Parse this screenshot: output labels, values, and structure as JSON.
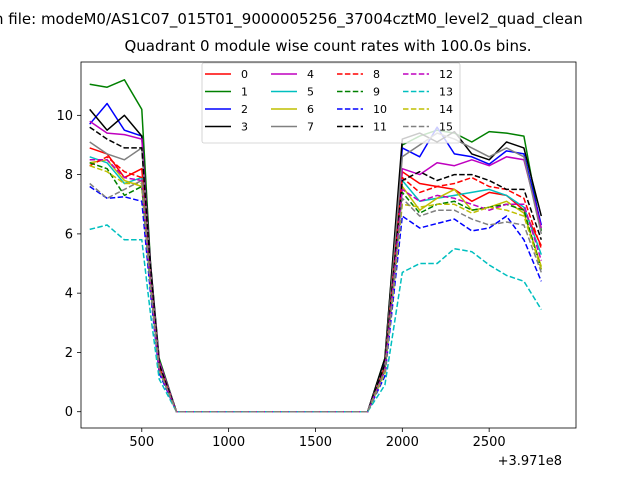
{
  "suptitle": "n file: modeM0/AS1C07_015T01_9000005256_37004cztM0_level2_quad_clean",
  "chart_data": {
    "type": "line",
    "title": "Quadrant 0 module wise count rates with 100.0s bins.",
    "xlabel": "",
    "ylabel": "",
    "x_offset_label": "+3.971e8",
    "xlim": [
      150,
      3000
    ],
    "ylim": [
      -0.55,
      11.8
    ],
    "xticks": [
      500,
      1000,
      1500,
      2000,
      2500
    ],
    "xtick_labels": [
      "500",
      "1000",
      "1500",
      "2000",
      "2500"
    ],
    "yticks": [
      0,
      2,
      4,
      6,
      8,
      10
    ],
    "ytick_labels": [
      "0",
      "2",
      "4",
      "6",
      "8",
      "10"
    ],
    "grid": false,
    "legend_position": "upper-center",
    "legend_columns": 4,
    "x": [
      200,
      300,
      400,
      500,
      550,
      600,
      700,
      800,
      900,
      1000,
      1100,
      1200,
      1300,
      1400,
      1500,
      1600,
      1700,
      1800,
      1900,
      2000,
      2100,
      2200,
      2300,
      2400,
      2500,
      2600,
      2700,
      2800
    ],
    "series": [
      {
        "name": "0",
        "color": "#ff0000",
        "dash": "solid",
        "values": [
          8.9,
          8.7,
          7.9,
          8.2,
          4.5,
          1.5,
          0,
          0,
          0,
          0,
          0,
          0,
          0,
          0,
          0,
          0,
          0,
          0,
          1.4,
          8.1,
          7.7,
          7.6,
          7.5,
          7.1,
          7.4,
          7.3,
          6.8,
          5.6
        ]
      },
      {
        "name": "1",
        "color": "#008000",
        "dash": "solid",
        "values": [
          11.05,
          10.95,
          11.2,
          10.2,
          5.0,
          1.8,
          0,
          0,
          0,
          0,
          0,
          0,
          0,
          0,
          0,
          0,
          0,
          0,
          1.8,
          9.0,
          9.3,
          9.5,
          9.4,
          9.1,
          9.45,
          9.4,
          9.3,
          6.1
        ]
      },
      {
        "name": "2",
        "color": "#0000ff",
        "dash": "solid",
        "values": [
          9.7,
          10.4,
          9.5,
          9.3,
          4.9,
          1.7,
          0,
          0,
          0,
          0,
          0,
          0,
          0,
          0,
          0,
          0,
          0,
          0,
          1.7,
          8.9,
          8.6,
          9.6,
          8.7,
          8.6,
          8.35,
          8.8,
          8.7,
          6.3
        ]
      },
      {
        "name": "3",
        "color": "#000000",
        "dash": "solid",
        "values": [
          10.2,
          9.5,
          10.0,
          9.3,
          5.0,
          1.7,
          0,
          0,
          0,
          0,
          0,
          0,
          0,
          0,
          0,
          0,
          0,
          0,
          1.8,
          9.2,
          9.4,
          9.1,
          9.45,
          8.7,
          8.5,
          9.1,
          8.9,
          6.6
        ]
      },
      {
        "name": "4",
        "color": "#bf00bf",
        "dash": "solid",
        "values": [
          9.8,
          9.4,
          9.35,
          9.2,
          4.8,
          1.7,
          0,
          0,
          0,
          0,
          0,
          0,
          0,
          0,
          0,
          0,
          0,
          0,
          1.6,
          8.2,
          8.0,
          8.4,
          8.3,
          8.5,
          8.3,
          8.6,
          8.5,
          6.2
        ]
      },
      {
        "name": "5",
        "color": "#00bfbf",
        "dash": "solid",
        "values": [
          8.6,
          8.4,
          7.7,
          7.9,
          4.4,
          1.5,
          0,
          0,
          0,
          0,
          0,
          0,
          0,
          0,
          0,
          0,
          0,
          0,
          1.4,
          7.8,
          7.1,
          7.2,
          7.3,
          7.4,
          7.5,
          7.3,
          6.9,
          5.3
        ]
      },
      {
        "name": "6",
        "color": "#bfbf00",
        "dash": "solid",
        "values": [
          8.4,
          8.5,
          7.8,
          7.6,
          4.2,
          1.4,
          0,
          0,
          0,
          0,
          0,
          0,
          0,
          0,
          0,
          0,
          0,
          0,
          1.4,
          7.6,
          6.8,
          7.2,
          7.5,
          6.8,
          6.9,
          7.1,
          6.7,
          4.9
        ]
      },
      {
        "name": "7",
        "color": "#808080",
        "dash": "solid",
        "values": [
          9.1,
          8.7,
          8.5,
          8.9,
          4.7,
          1.6,
          0,
          0,
          0,
          0,
          0,
          0,
          0,
          0,
          0,
          0,
          0,
          0,
          1.6,
          8.6,
          9.0,
          9.4,
          9.2,
          8.9,
          8.6,
          8.9,
          8.6,
          6.0
        ]
      },
      {
        "name": "8",
        "color": "#ff0000",
        "dash": "dashed",
        "values": [
          8.3,
          8.6,
          8.1,
          7.9,
          4.4,
          1.5,
          0,
          0,
          0,
          0,
          0,
          0,
          0,
          0,
          0,
          0,
          0,
          0,
          1.5,
          7.9,
          7.4,
          7.6,
          7.7,
          7.9,
          7.6,
          7.5,
          7.2,
          5.5
        ]
      },
      {
        "name": "9",
        "color": "#008000",
        "dash": "dashed",
        "values": [
          8.4,
          8.2,
          7.3,
          7.6,
          4.2,
          1.4,
          0,
          0,
          0,
          0,
          0,
          0,
          0,
          0,
          0,
          0,
          0,
          0,
          1.4,
          7.4,
          6.7,
          7.0,
          7.1,
          6.8,
          6.9,
          7.0,
          6.8,
          4.8
        ]
      },
      {
        "name": "10",
        "color": "#0000ff",
        "dash": "dashed",
        "values": [
          7.6,
          7.2,
          7.25,
          7.1,
          4.0,
          1.3,
          0,
          0,
          0,
          0,
          0,
          0,
          0,
          0,
          0,
          0,
          0,
          0,
          1.2,
          6.6,
          6.2,
          6.35,
          6.5,
          6.1,
          6.2,
          6.6,
          5.8,
          4.4
        ]
      },
      {
        "name": "11",
        "color": "#000000",
        "dash": "dashed",
        "values": [
          9.6,
          9.2,
          8.9,
          8.9,
          4.8,
          1.6,
          0,
          0,
          0,
          0,
          0,
          0,
          0,
          0,
          0,
          0,
          0,
          0,
          1.6,
          7.8,
          8.1,
          7.8,
          8.0,
          8.0,
          7.8,
          7.5,
          7.5,
          5.8
        ]
      },
      {
        "name": "12",
        "color": "#bf00bf",
        "dash": "dashed",
        "values": [
          8.5,
          8.5,
          7.9,
          7.8,
          4.3,
          1.4,
          0,
          0,
          0,
          0,
          0,
          0,
          0,
          0,
          0,
          0,
          0,
          0,
          1.4,
          7.5,
          7.1,
          7.3,
          7.2,
          7.0,
          6.8,
          7.0,
          7.0,
          5.1
        ]
      },
      {
        "name": "13",
        "color": "#00bfbf",
        "dash": "dashed",
        "values": [
          6.15,
          6.3,
          5.8,
          5.8,
          3.3,
          1.1,
          0,
          0,
          0,
          0,
          0,
          0,
          0,
          0,
          0,
          0,
          0,
          0,
          0.9,
          4.7,
          5.0,
          5.0,
          5.5,
          5.4,
          4.95,
          4.6,
          4.4,
          3.45
        ]
      },
      {
        "name": "14",
        "color": "#bfbf00",
        "dash": "dashed",
        "values": [
          8.3,
          8.1,
          7.7,
          7.7,
          4.2,
          1.4,
          0,
          0,
          0,
          0,
          0,
          0,
          0,
          0,
          0,
          0,
          0,
          0,
          1.3,
          7.0,
          6.9,
          7.0,
          7.0,
          6.7,
          6.9,
          6.8,
          6.6,
          4.8
        ]
      },
      {
        "name": "15",
        "color": "#808080",
        "dash": "dashed",
        "values": [
          7.7,
          7.2,
          7.5,
          7.8,
          4.3,
          1.4,
          0,
          0,
          0,
          0,
          0,
          0,
          0,
          0,
          0,
          0,
          0,
          0,
          1.4,
          7.2,
          6.6,
          6.8,
          6.8,
          6.5,
          6.3,
          6.4,
          6.3,
          4.7
        ]
      }
    ]
  }
}
